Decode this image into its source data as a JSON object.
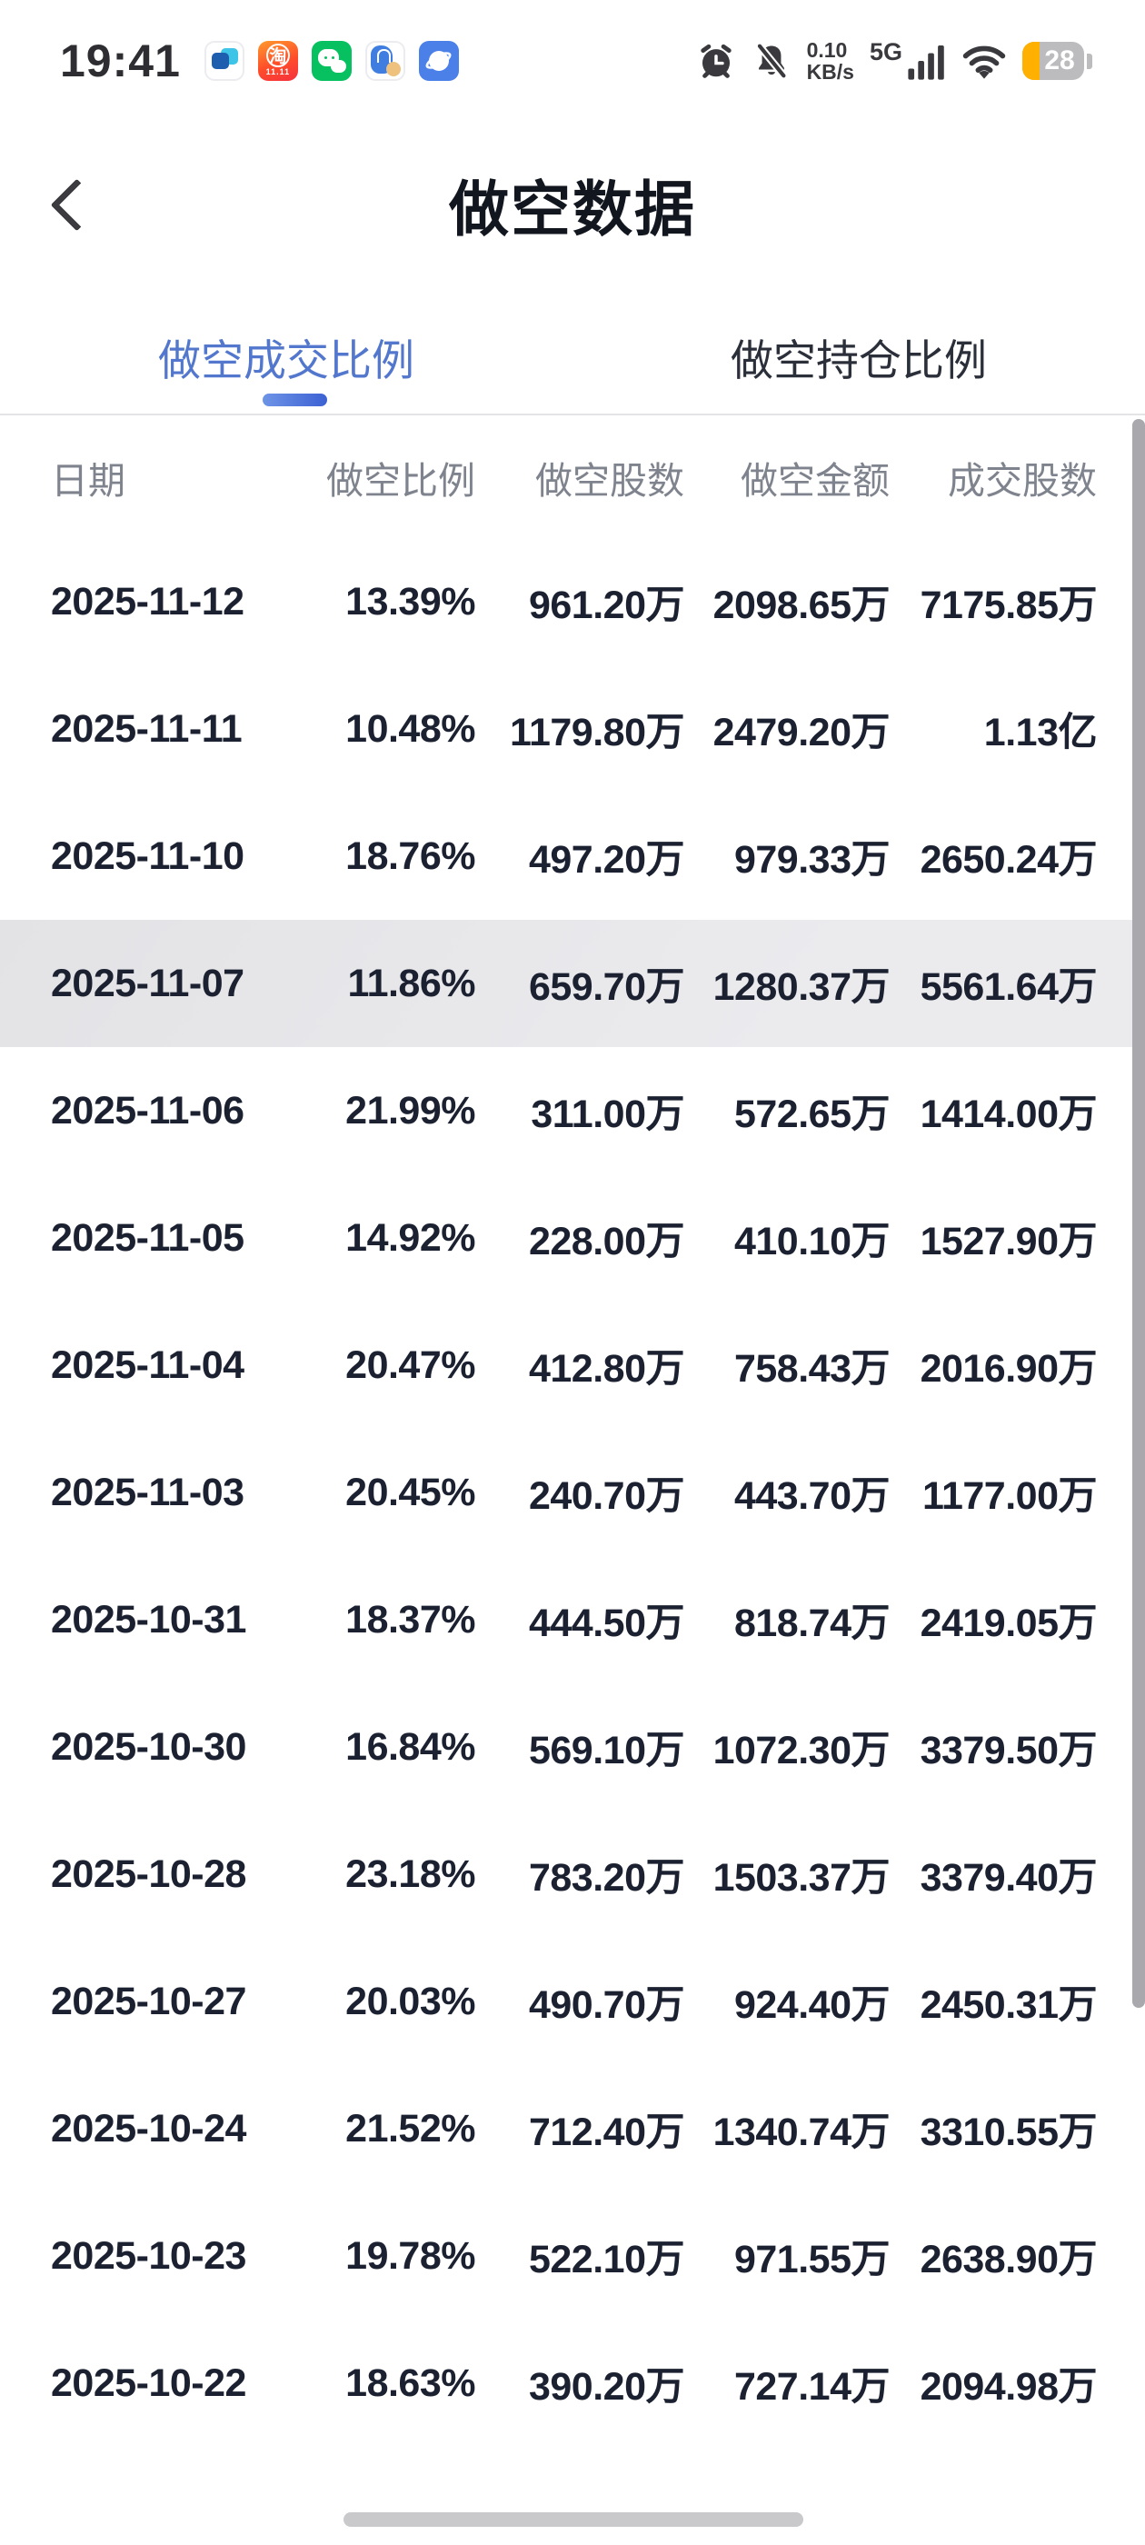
{
  "status_bar": {
    "time": "19:41",
    "net_speed_value": "0.10",
    "net_speed_unit": "KB/s",
    "network_type": "5G",
    "battery_percent": "28",
    "taobao_char": "淘",
    "taobao_badge": "11.11",
    "app_icons": [
      "messages",
      "taobao",
      "wechat",
      "shopping-bag",
      "browser"
    ]
  },
  "nav": {
    "title": "做空数据"
  },
  "tabs": [
    {
      "label": "做空成交比例",
      "active": true
    },
    {
      "label": "做空持仓比例",
      "active": false
    }
  ],
  "table": {
    "headers": [
      "日期",
      "做空比例",
      "做空股数",
      "做空金额",
      "成交股数"
    ],
    "highlighted_row_index": 3,
    "rows": [
      [
        "2025-11-12",
        "13.39%",
        "961.20万",
        "2098.65万",
        "7175.85万"
      ],
      [
        "2025-11-11",
        "10.48%",
        "1179.80万",
        "2479.20万",
        "1.13亿"
      ],
      [
        "2025-11-10",
        "18.76%",
        "497.20万",
        "979.33万",
        "2650.24万"
      ],
      [
        "2025-11-07",
        "11.86%",
        "659.70万",
        "1280.37万",
        "5561.64万"
      ],
      [
        "2025-11-06",
        "21.99%",
        "311.00万",
        "572.65万",
        "1414.00万"
      ],
      [
        "2025-11-05",
        "14.92%",
        "228.00万",
        "410.10万",
        "1527.90万"
      ],
      [
        "2025-11-04",
        "20.47%",
        "412.80万",
        "758.43万",
        "2016.90万"
      ],
      [
        "2025-11-03",
        "20.45%",
        "240.70万",
        "443.70万",
        "1177.00万"
      ],
      [
        "2025-10-31",
        "18.37%",
        "444.50万",
        "818.74万",
        "2419.05万"
      ],
      [
        "2025-10-30",
        "16.84%",
        "569.10万",
        "1072.30万",
        "3379.50万"
      ],
      [
        "2025-10-28",
        "23.18%",
        "783.20万",
        "1503.37万",
        "3379.40万"
      ],
      [
        "2025-10-27",
        "20.03%",
        "490.70万",
        "924.40万",
        "2450.31万"
      ],
      [
        "2025-10-24",
        "21.52%",
        "712.40万",
        "1340.74万",
        "3310.55万"
      ],
      [
        "2025-10-23",
        "19.78%",
        "522.10万",
        "971.55万",
        "2638.90万"
      ],
      [
        "2025-10-22",
        "18.63%",
        "390.20万",
        "727.14万",
        "2094.98万"
      ]
    ]
  },
  "colors": {
    "accent_blue": "#5277cd",
    "underline_gradient_start": "#6e94e7",
    "underline_gradient_end": "#3c61d3",
    "highlight_row": "#e7e7ea",
    "header_text": "#7e838d",
    "data_text": "#1b2130",
    "battery_orange": "#ffb000",
    "scrollbar_gray": "#a9a9ad"
  }
}
